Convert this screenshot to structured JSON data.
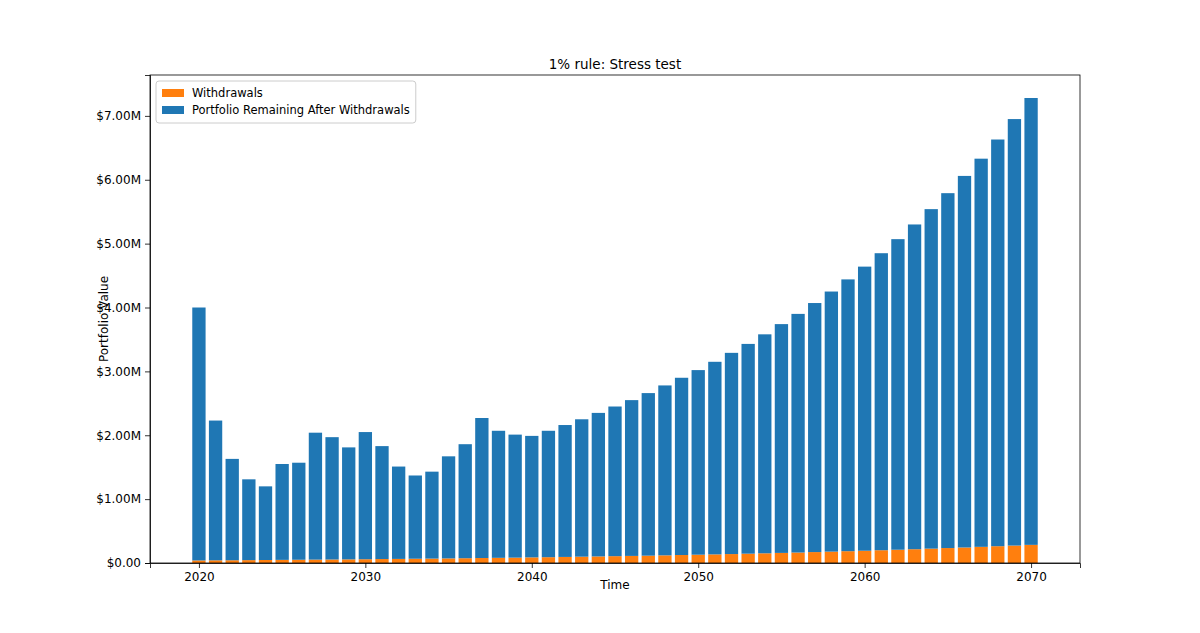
{
  "chart_data": {
    "type": "bar",
    "stacked": true,
    "title": "1% rule: Stress test",
    "x_label": "Time",
    "y_label": "Portfolio Value",
    "legend": "upper left",
    "grid": false,
    "x": [
      2020,
      2021,
      2022,
      2023,
      2024,
      2025,
      2026,
      2027,
      2028,
      2029,
      2030,
      2031,
      2032,
      2033,
      2034,
      2035,
      2036,
      2037,
      2038,
      2039,
      2040,
      2041,
      2042,
      2043,
      2044,
      2045,
      2046,
      2047,
      2048,
      2049,
      2050,
      2051,
      2052,
      2053,
      2054,
      2055,
      2056,
      2057,
      2058,
      2059,
      2060,
      2061,
      2062,
      2063,
      2064,
      2065,
      2066,
      2067,
      2068,
      2069,
      2070
    ],
    "xlim": [
      2017.06,
      2072.94
    ],
    "xticks": [
      2020,
      2030,
      2040,
      2050,
      2060,
      2070
    ],
    "ylim": [
      0,
      7640000
    ],
    "yticks": [
      {
        "value": 0,
        "label": "$0.00"
      },
      {
        "value": 1000000,
        "label": "$1.00M"
      },
      {
        "value": 2000000,
        "label": "$2.00M"
      },
      {
        "value": 3000000,
        "label": "$3.00M"
      },
      {
        "value": 4000000,
        "label": "$4.00M"
      },
      {
        "value": 5000000,
        "label": "$5.00M"
      },
      {
        "value": 6000000,
        "label": "$6.00M"
      },
      {
        "value": 7000000,
        "label": "$7.00M"
      }
    ],
    "series": [
      {
        "name": "Withdrawals",
        "color": "#ff7f0e",
        "values": [
          40000,
          42000,
          43000,
          45000,
          47000,
          49000,
          51000,
          53000,
          55000,
          57000,
          59000,
          62000,
          64000,
          67000,
          69000,
          72000,
          75000,
          78000,
          81000,
          84000,
          88000,
          91000,
          95000,
          99000,
          103000,
          107000,
          111000,
          115000,
          120000,
          125000,
          130000,
          135000,
          140000,
          146000,
          152000,
          158000,
          164000,
          171000,
          178000,
          185000,
          192000,
          200000,
          208000,
          216000,
          225000,
          234000,
          243000,
          253000,
          263000,
          273000,
          284000
        ]
      },
      {
        "name": "Portfolio Remaining After Withdrawals",
        "color": "#1f77b4",
        "values": [
          3960000,
          2188000,
          1587000,
          1265000,
          1153000,
          1501000,
          1519000,
          1987000,
          1915000,
          1753000,
          1991000,
          1768000,
          1446000,
          1303000,
          1361000,
          1598000,
          1785000,
          2192000,
          1989000,
          1926000,
          1902000,
          1979000,
          2065000,
          2151000,
          2247000,
          2343000,
          2439000,
          2545000,
          2660000,
          2775000,
          2890000,
          3015000,
          3150000,
          3284000,
          3428000,
          3582000,
          3736000,
          3899000,
          4072000,
          4255000,
          4448000,
          4650000,
          4862000,
          5084000,
          5315000,
          5556000,
          5817000,
          6077000,
          6367000,
          6677000,
          6996000
        ]
      }
    ]
  }
}
